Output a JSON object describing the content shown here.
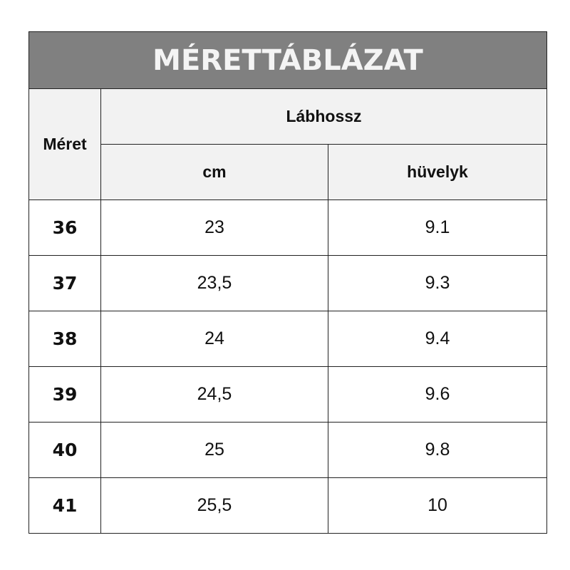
{
  "title": "MÉRETTÁBLÁZAT",
  "headers": {
    "size": "Méret",
    "foot_length": "Lábhossz",
    "cm": "cm",
    "inch": "hüvelyk"
  },
  "colors": {
    "title_bg": "#808080",
    "header_bg": "#f2f2f2",
    "border": "#222222"
  },
  "rows": [
    {
      "size": "36",
      "cm": "23",
      "inch": "9.1"
    },
    {
      "size": "37",
      "cm": "23,5",
      "inch": "9.3"
    },
    {
      "size": "38",
      "cm": "24",
      "inch": "9.4"
    },
    {
      "size": "39",
      "cm": "24,5",
      "inch": "9.6"
    },
    {
      "size": "40",
      "cm": "25",
      "inch": "9.8"
    },
    {
      "size": "41",
      "cm": "25,5",
      "inch": "10"
    }
  ]
}
